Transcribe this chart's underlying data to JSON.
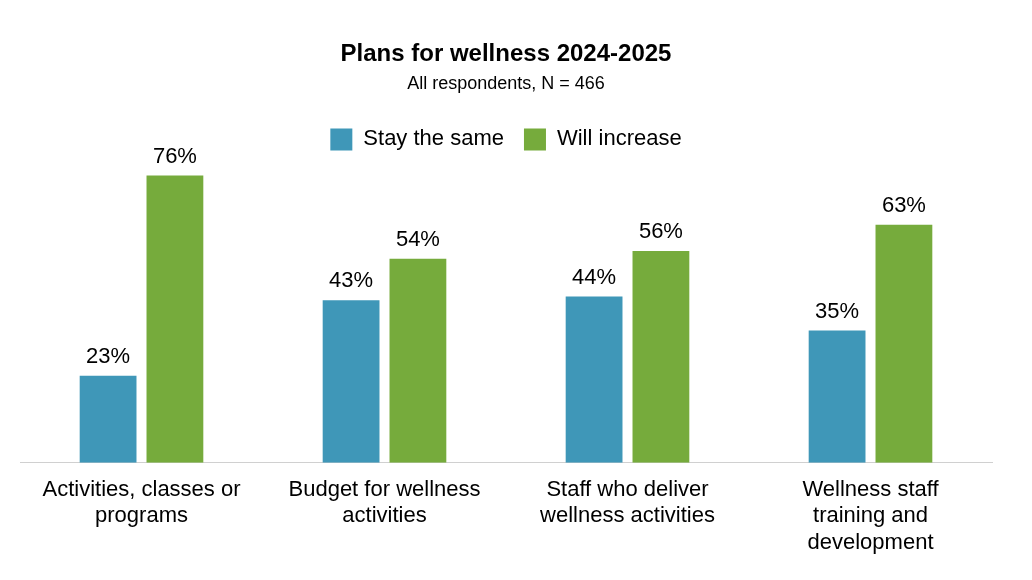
{
  "chart_data": {
    "type": "bar",
    "title": "Plans for wellness 2024-2025",
    "subtitle": "All respondents, N = 466",
    "categories": [
      "Activities, classes or programs",
      "Budget for wellness activities",
      "Staff who deliver wellness activities",
      "Wellness staff training and development"
    ],
    "series": [
      {
        "name": "Stay the same",
        "color": "#3f97b8",
        "values": [
          23,
          43,
          44,
          35
        ],
        "value_labels": [
          "23%",
          "43%",
          "44%",
          "35%"
        ]
      },
      {
        "name": "Will increase",
        "color": "#76ab3c",
        "values": [
          76,
          54,
          56,
          63
        ],
        "value_labels": [
          "76%",
          "54%",
          "56%",
          "63%"
        ]
      }
    ],
    "legend": "top",
    "grid": false
  }
}
